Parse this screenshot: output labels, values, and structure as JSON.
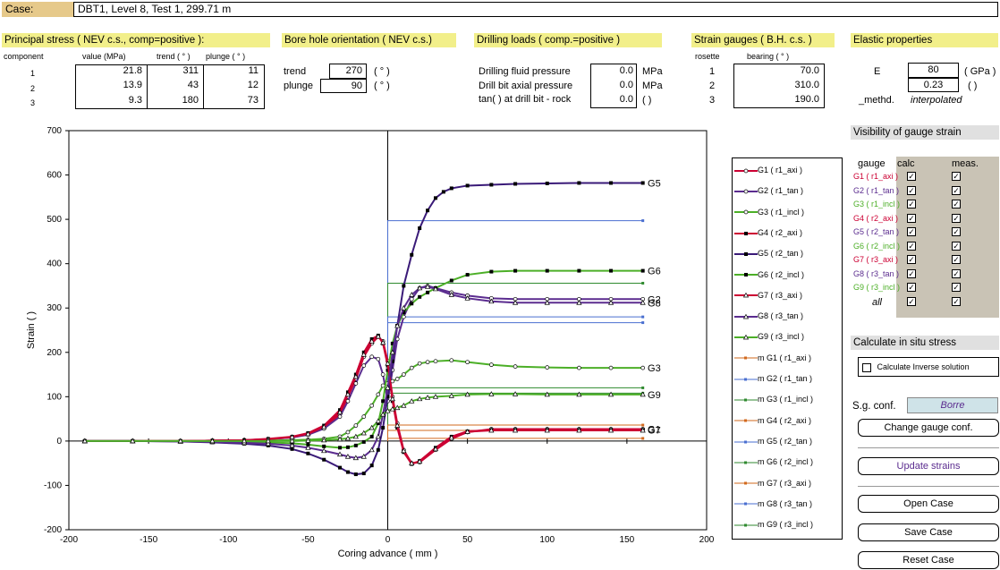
{
  "case": {
    "label": "Case:",
    "value": "DBT1, Level 8, Test 1, 299.71 m"
  },
  "principal": {
    "title": "Principal stress ( NEV c.s., comp=positive ):",
    "headers": [
      "component",
      "value (MPa)",
      "trend ( ° )",
      "plunge ( ° )"
    ],
    "rows": [
      {
        "c": "1",
        "v": "21.8",
        "t": "311",
        "p": "11"
      },
      {
        "c": "2",
        "v": "13.9",
        "t": "43",
        "p": "12"
      },
      {
        "c": "3",
        "v": "9.3",
        "t": "180",
        "p": "73"
      }
    ]
  },
  "borehole": {
    "title": "Bore hole orientation ( NEV c.s.)",
    "trend_label": "trend",
    "trend": "270",
    "plunge_label": "plunge",
    "plunge": "90",
    "unit": "( ° )"
  },
  "drilling": {
    "title": "Drilling loads ( comp.=positive )",
    "rows": [
      {
        "label": "Drilling fluid pressure",
        "value": "0.0",
        "unit": "MPa"
      },
      {
        "label": "Drill bit axial pressure",
        "value": "0.0",
        "unit": "MPa"
      },
      {
        "label": "tan(  ) at drill bit - rock",
        "value": "0.0",
        "unit": "(  )"
      }
    ]
  },
  "gauges": {
    "title": "Strain gauges ( B.H. c.s. )",
    "h_rosette": "rosette",
    "h_bearing": "bearing ( ° )",
    "rows": [
      {
        "r": "1",
        "b": "70.0"
      },
      {
        "r": "2",
        "b": "310.0"
      },
      {
        "r": "3",
        "b": "190.0"
      }
    ]
  },
  "elastic": {
    "title": "Elastic properties",
    "E_label": "E",
    "E": "80",
    "E_unit": "( GPa )",
    "nu": "0.23",
    "nu_unit": "(  )",
    "methd_label": "_methd.",
    "methd": "interpolated"
  },
  "visibility": {
    "title": "Visibility of gauge strain",
    "h_gauge": "gauge",
    "h_calc": "calc",
    "h_meas": "meas.",
    "items": [
      {
        "name": "G1 ( r1_axi )",
        "color": "#cc0033"
      },
      {
        "name": "G2 ( r1_tan )",
        "color": "#5b2c8f"
      },
      {
        "name": "G3 ( r1_incl )",
        "color": "#4caf27"
      },
      {
        "name": "G4 ( r2_axi )",
        "color": "#cc0033"
      },
      {
        "name": "G5 ( r2_tan )",
        "color": "#5b2c8f"
      },
      {
        "name": "G6 ( r2_incl )",
        "color": "#4caf27"
      },
      {
        "name": "G7 ( r3_axi )",
        "color": "#cc0033"
      },
      {
        "name": "G8 ( r3_tan )",
        "color": "#5b2c8f"
      },
      {
        "name": "G9 ( r3_incl )",
        "color": "#4caf27"
      }
    ],
    "all": "all"
  },
  "inverse": {
    "title": "Calculate in situ stress",
    "checkbox_label": "Calculate Inverse solution"
  },
  "sg_conf": {
    "label": "S.g. conf.",
    "value": "Borre"
  },
  "buttons": {
    "change": "Change gauge conf.",
    "update": "Update strains",
    "open": "Open Case",
    "save": "Save Case",
    "reset": "Reset Case"
  },
  "legend": [
    "G1 ( r1_axi )",
    "G2 ( r1_tan )",
    "G3 ( r1_incl )",
    "G4 ( r2_axi )",
    "G5 ( r2_tan )",
    "G6 ( r2_incl )",
    "G7 ( r3_axi )",
    "G8 ( r3_tan )",
    "G9 ( r3_incl )",
    "m G1 ( r1_axi )",
    "m G2 ( r1_tan )",
    "m G3 ( r1_incl )",
    "m G4 ( r2_axi )",
    "m G5 ( r2_tan )",
    "m G6 ( r2_incl )",
    "m G7 ( r3_axi )",
    "m G8 ( r3_tan )",
    "m G9 ( r3_incl )"
  ],
  "chart_data": {
    "type": "line",
    "xlabel": "Coring advance ( mm )",
    "ylabel": "Strain (  )",
    "xlim": [
      -200,
      200
    ],
    "ylim": [
      -200,
      700
    ],
    "xticks": [
      -200,
      -150,
      -100,
      -50,
      0,
      50,
      100,
      150,
      200
    ],
    "yticks": [
      -200,
      -100,
      0,
      100,
      200,
      300,
      400,
      500,
      600,
      700
    ],
    "end_labels": [
      {
        "text": "G5",
        "y": 582
      },
      {
        "text": "G6",
        "y": 384
      },
      {
        "text": "G2",
        "y": 320
      },
      {
        "text": "G8",
        "y": 312
      },
      {
        "text": "G3",
        "y": 165
      },
      {
        "text": "G9",
        "y": 105
      },
      {
        "text": "G1",
        "y": 27
      },
      {
        "text": "G7",
        "y": 25
      }
    ],
    "series": [
      {
        "name": "G1 ( r1_axi )",
        "color": "#cc0033",
        "marker": "circle",
        "x": [
          -190,
          -160,
          -130,
          -110,
          -90,
          -75,
          -60,
          -50,
          -40,
          -30,
          -25,
          -20,
          -15,
          -10,
          -6,
          -3,
          0,
          3,
          6,
          10,
          15,
          20,
          30,
          40,
          50,
          65,
          80,
          100,
          120,
          140,
          160
        ],
        "y": [
          0,
          0,
          0,
          1,
          2,
          4,
          8,
          15,
          30,
          60,
          100,
          140,
          190,
          220,
          235,
          225,
          180,
          100,
          40,
          -20,
          -50,
          -48,
          -20,
          5,
          20,
          27,
          27,
          27,
          27,
          27,
          27
        ]
      },
      {
        "name": "G2 ( r1_tan )",
        "color": "#5b2c8f",
        "marker": "circle",
        "x": [
          -190,
          -160,
          -130,
          -110,
          -90,
          -75,
          -60,
          -50,
          -40,
          -30,
          -25,
          -20,
          -15,
          -10,
          -6,
          -3,
          0,
          3,
          6,
          10,
          15,
          20,
          25,
          30,
          40,
          50,
          65,
          80,
          100,
          120,
          140,
          160
        ],
        "y": [
          0,
          0,
          0,
          1,
          2,
          4,
          8,
          14,
          28,
          55,
          90,
          130,
          170,
          190,
          185,
          150,
          90,
          160,
          230,
          280,
          320,
          345,
          350,
          345,
          335,
          328,
          322,
          320,
          320,
          320,
          320,
          320
        ]
      },
      {
        "name": "G3 ( r1_incl )",
        "color": "#4caf27",
        "marker": "circle",
        "x": [
          -190,
          -160,
          -130,
          -110,
          -90,
          -75,
          -60,
          -50,
          -40,
          -30,
          -25,
          -20,
          -15,
          -10,
          -6,
          -3,
          0,
          3,
          6,
          10,
          15,
          20,
          25,
          30,
          40,
          50,
          65,
          80,
          100,
          120,
          140,
          160
        ],
        "y": [
          0,
          0,
          0,
          0,
          0,
          1,
          2,
          3,
          5,
          10,
          20,
          35,
          55,
          80,
          105,
          125,
          130,
          135,
          140,
          150,
          165,
          175,
          178,
          180,
          182,
          178,
          172,
          168,
          166,
          165,
          165,
          165
        ]
      },
      {
        "name": "G4 ( r2_axi )",
        "color": "#cc0033",
        "marker": "square",
        "x": [
          -190,
          -160,
          -130,
          -110,
          -90,
          -75,
          -60,
          -50,
          -40,
          -30,
          -25,
          -20,
          -15,
          -10,
          -6,
          -3,
          0,
          3,
          6,
          10,
          15,
          20,
          30,
          40,
          50,
          65,
          80,
          100,
          120,
          140,
          160
        ],
        "y": [
          0,
          0,
          0,
          1,
          2,
          5,
          10,
          18,
          35,
          70,
          110,
          150,
          200,
          230,
          238,
          220,
          170,
          90,
          30,
          -25,
          -52,
          -45,
          -15,
          10,
          22,
          25,
          25,
          25,
          25,
          25,
          25
        ]
      },
      {
        "name": "G5 ( r2_tan )",
        "color": "#3a1a78",
        "marker": "square",
        "x": [
          -190,
          -160,
          -130,
          -110,
          -90,
          -75,
          -60,
          -50,
          -40,
          -30,
          -25,
          -20,
          -15,
          -10,
          -6,
          -3,
          0,
          3,
          6,
          10,
          15,
          20,
          25,
          30,
          35,
          40,
          50,
          65,
          80,
          100,
          120,
          140,
          160
        ],
        "y": [
          0,
          0,
          -1,
          -3,
          -6,
          -10,
          -18,
          -28,
          -42,
          -60,
          -70,
          -75,
          -73,
          -55,
          -20,
          30,
          100,
          180,
          260,
          350,
          420,
          480,
          520,
          548,
          562,
          570,
          576,
          578,
          580,
          581,
          582,
          582,
          582
        ]
      },
      {
        "name": "G6 ( r2_incl )",
        "color": "#4caf27",
        "marker": "square",
        "x": [
          -190,
          -160,
          -130,
          -110,
          -90,
          -75,
          -60,
          -50,
          -40,
          -30,
          -25,
          -20,
          -15,
          -10,
          -6,
          -3,
          0,
          3,
          6,
          10,
          15,
          20,
          25,
          30,
          40,
          50,
          65,
          80,
          100,
          120,
          140,
          160
        ],
        "y": [
          0,
          0,
          0,
          -1,
          -2,
          -3,
          -5,
          -8,
          -12,
          -15,
          -14,
          -10,
          -2,
          10,
          40,
          90,
          160,
          220,
          260,
          290,
          310,
          325,
          335,
          345,
          362,
          375,
          382,
          384,
          384,
          384,
          384,
          384
        ]
      },
      {
        "name": "G7 ( r3_axi )",
        "color": "#cc0033",
        "marker": "triangle",
        "x": [
          -190,
          -160,
          -130,
          -110,
          -90,
          -75,
          -60,
          -50,
          -40,
          -30,
          -25,
          -20,
          -15,
          -10,
          -6,
          -3,
          0,
          3,
          6,
          10,
          15,
          20,
          30,
          40,
          50,
          65,
          80,
          100,
          120,
          140,
          160
        ],
        "y": [
          0,
          0,
          0,
          1,
          2,
          4,
          9,
          16,
          32,
          65,
          105,
          145,
          195,
          225,
          236,
          222,
          175,
          95,
          35,
          -22,
          -50,
          -46,
          -18,
          8,
          21,
          24,
          24,
          24,
          24,
          24,
          24
        ]
      },
      {
        "name": "G8 ( r3_tan )",
        "color": "#5b2c8f",
        "marker": "triangle",
        "x": [
          -190,
          -160,
          -130,
          -110,
          -90,
          -75,
          -60,
          -50,
          -40,
          -30,
          -25,
          -20,
          -15,
          -10,
          -6,
          -3,
          0,
          3,
          6,
          10,
          15,
          20,
          25,
          30,
          40,
          50,
          65,
          80,
          100,
          120,
          140,
          160
        ],
        "y": [
          0,
          0,
          -1,
          -2,
          -4,
          -6,
          -10,
          -15,
          -22,
          -30,
          -35,
          -38,
          -35,
          -20,
          10,
          60,
          120,
          200,
          260,
          300,
          330,
          345,
          348,
          343,
          330,
          322,
          315,
          312,
          312,
          312,
          312,
          312
        ]
      },
      {
        "name": "G9 ( r3_incl )",
        "color": "#4caf27",
        "marker": "triangle",
        "x": [
          -190,
          -160,
          -130,
          -110,
          -90,
          -75,
          -60,
          -50,
          -40,
          -30,
          -25,
          -20,
          -15,
          -10,
          -6,
          -3,
          0,
          3,
          6,
          10,
          15,
          20,
          25,
          30,
          40,
          50,
          65,
          80,
          100,
          120,
          140,
          160
        ],
        "y": [
          0,
          0,
          0,
          0,
          0,
          0,
          0,
          1,
          2,
          4,
          6,
          10,
          18,
          30,
          45,
          60,
          68,
          72,
          75,
          80,
          90,
          95,
          98,
          100,
          102,
          105,
          106,
          106,
          105,
          105,
          105,
          105
        ]
      }
    ],
    "measured": [
      {
        "name": "m G5 ( r2_tan )",
        "color": "#4a6fd0",
        "y": 497
      },
      {
        "name": "m G6 ( r2_incl )",
        "color": "#2f8a2f",
        "y": 356
      },
      {
        "name": "m G2 ( r1_tan )",
        "color": "#4a6fd0",
        "y": 280
      },
      {
        "name": "m G8 ( r3_tan )",
        "color": "#4a6fd0",
        "y": 267
      },
      {
        "name": "m G3 ( r1_incl )",
        "color": "#2f8a2f",
        "y": 120
      },
      {
        "name": "m G9 ( r3_incl )",
        "color": "#2f8a2f",
        "y": 108
      },
      {
        "name": "m G4 ( r2_axi )",
        "color": "#d2691e",
        "y": 36
      },
      {
        "name": "m G7 ( r3_axi )",
        "color": "#d2691e",
        "y": 24
      },
      {
        "name": "m G1 ( r1_axi )",
        "color": "#d2691e",
        "y": 6
      }
    ]
  }
}
